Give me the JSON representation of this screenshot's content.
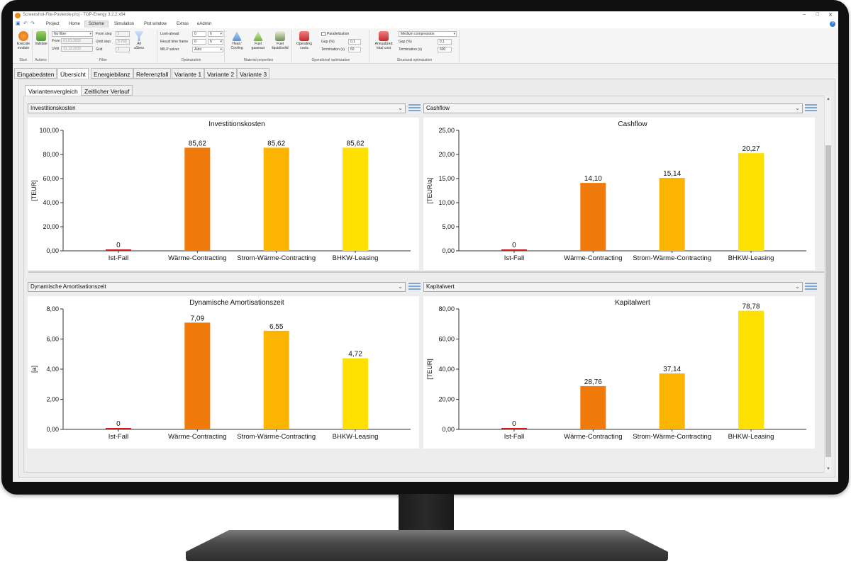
{
  "window": {
    "title": "Screenshot-File-Posterde-proj - TOP-Energy 3.2.2 x64",
    "controls": [
      "–",
      "□",
      "✕"
    ]
  },
  "menu": {
    "tabs": [
      "Project",
      "Home",
      "Scheme",
      "Simulation",
      "Plot window",
      "Extras",
      "eAdmin"
    ],
    "active": "Scheme",
    "help": "?"
  },
  "ribbon": {
    "start": {
      "button": "Execute module",
      "group": "Start"
    },
    "actions": {
      "button": "Validate",
      "group": "Actions"
    },
    "filter": {
      "group": "Filter",
      "no_filter": "No filter",
      "from_label": "From",
      "from_value": "01.01.2023",
      "until_label": "Until",
      "until_value": "31.12.2023",
      "from_step_label": "From step",
      "from_step_value": "1",
      "until_step_label": "Until step",
      "until_step_value": "8.760",
      "grid_label": "Grid",
      "grid_value": "1",
      "all_label": "All",
      "alarms_label": "aSims"
    },
    "optimization": {
      "group": "Optimization",
      "lookahead_label": "Look-ahead",
      "lookahead_value": "0",
      "lookahead_unit": "h",
      "result_tf_label": "Result time frame",
      "result_tf_value": "0",
      "result_tf_unit": "h",
      "milp_label": "MILP solver",
      "milp_value": "Auto"
    },
    "material": {
      "group": "Material properties",
      "heat": "Heat / Cooling",
      "fuel_gas": "Fuel gaseous",
      "fuel_liquid": "Fuel liquid/solid"
    },
    "operational": {
      "group": "Operational optimization",
      "button": "Operating costs",
      "parallel_label": "Parallelization",
      "gap_label": "Gap (%)",
      "gap_value": "0,1",
      "term_label": "Termination (s)",
      "term_value": "60"
    },
    "structural": {
      "group": "Structural optimization",
      "button": "Annualized total cost",
      "compression": "Medium compression",
      "gap_label": "Gap (%)",
      "gap_value": "0,1",
      "term_label": "Termination (s)",
      "term_value": "600"
    }
  },
  "main_tabs": [
    "Eingabedaten",
    "Übersicht",
    "Energiebilanz",
    "Referenzfall",
    "Variante 1",
    "Variante 2",
    "Variante 3"
  ],
  "main_tab_active": "Übersicht",
  "sub_tabs": [
    "Variantenvergleich",
    "Zeitlicher Verlauf"
  ],
  "sub_tab_active": "Variantenvergleich",
  "colors": {
    "ist_fall": "#d11a1a",
    "waerme_contracting": "#f07a0a",
    "strom_waerme_contracting": "#fbb400",
    "bhkw_leasing": "#ffe000"
  },
  "chart_data": [
    {
      "type": "bar",
      "selector": "Investitionskosten",
      "title": "Investitionskosten",
      "ylabel": "[TEUR]",
      "categories": [
        "Ist-Fall",
        "Wärme-Contracting",
        "Strom-Wärme-Contracting",
        "BHKW-Leasing"
      ],
      "values": [
        0,
        85.62,
        85.62,
        85.62
      ],
      "labels": [
        "0",
        "85,62",
        "85,62",
        "85,62"
      ],
      "ylim": [
        0,
        100
      ],
      "yticks": [
        0,
        20,
        40,
        60,
        80,
        100
      ],
      "yticklabels": [
        "0,00",
        "20,00",
        "40,00",
        "60,00",
        "80,00",
        "100,00"
      ],
      "grid": false,
      "legend": "none"
    },
    {
      "type": "bar",
      "selector": "Cashflow",
      "title": "Cashflow",
      "ylabel": "[TEUR/a]",
      "categories": [
        "Ist-Fall",
        "Wärme-Contracting",
        "Strom-Wärme-Contracting",
        "BHKW-Leasing"
      ],
      "values": [
        0,
        14.1,
        15.14,
        20.27
      ],
      "labels": [
        "0",
        "14,10",
        "15,14",
        "20,27"
      ],
      "ylim": [
        0,
        25
      ],
      "yticks": [
        0,
        5,
        10,
        15,
        20,
        25
      ],
      "yticklabels": [
        "0,00",
        "5,00",
        "10,00",
        "15,00",
        "20,00",
        "25,00"
      ],
      "grid": false,
      "legend": "none"
    },
    {
      "type": "bar",
      "selector": "Dynamische Amortisationszeit",
      "title": "Dynamische Amortisationszeit",
      "ylabel": "[a]",
      "categories": [
        "Ist-Fall",
        "Wärme-Contracting",
        "Strom-Wärme-Contracting",
        "BHKW-Leasing"
      ],
      "values": [
        0,
        7.09,
        6.55,
        4.72
      ],
      "labels": [
        "0",
        "7,09",
        "6,55",
        "4,72"
      ],
      "ylim": [
        0,
        8
      ],
      "yticks": [
        0,
        2,
        4,
        6,
        8
      ],
      "yticklabels": [
        "0,00",
        "2,00",
        "4,00",
        "6,00",
        "8,00"
      ],
      "grid": false,
      "legend": "none"
    },
    {
      "type": "bar",
      "selector": "Kapitalwert",
      "title": "Kapitalwert",
      "ylabel": "[TEUR]",
      "categories": [
        "Ist-Fall",
        "Wärme-Contracting",
        "Strom-Wärme-Contracting",
        "BHKW-Leasing"
      ],
      "values": [
        0,
        28.76,
        37.14,
        78.78
      ],
      "labels": [
        "0",
        "28,76",
        "37,14",
        "78,78"
      ],
      "ylim": [
        0,
        80
      ],
      "yticks": [
        0,
        20,
        40,
        60,
        80
      ],
      "yticklabels": [
        "0,00",
        "20,00",
        "40,00",
        "60,00",
        "80,00"
      ],
      "grid": false,
      "legend": "none"
    }
  ]
}
